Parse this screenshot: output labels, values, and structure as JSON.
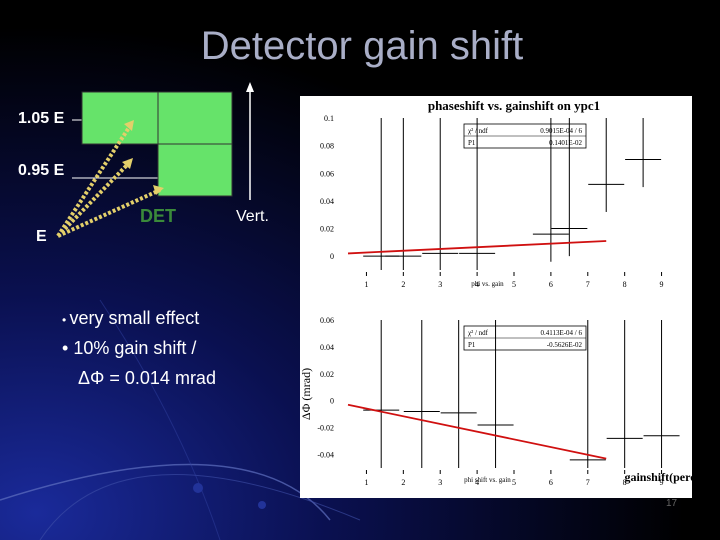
{
  "slide": {
    "title": "Detector gain shift",
    "energy_labels": [
      "1.05 E",
      "0.95 E",
      "E"
    ],
    "det_label": "DET",
    "vert_label": "Vert.",
    "bullets": [
      "very small effect",
      "10% gain shift /",
      "ΔΦ = 0.014 mrad"
    ],
    "slide_number": "17",
    "colors": {
      "background": "#000000",
      "title": "#a9aec7",
      "det_box": "#66e36a",
      "arrow": "#e3cf6a",
      "fit_line": "#d01010"
    }
  },
  "chart_data": [
    {
      "type": "scatter",
      "title": "phaseshift vs. gainshift on ypc1",
      "xlabel": "phi vs. gain",
      "ylabel": "",
      "xlim": [
        0.5,
        9.5
      ],
      "ylim": [
        -0.01,
        0.1
      ],
      "xticks": [
        "1",
        "2",
        "3",
        "4",
        "5",
        "6",
        "7",
        "8",
        "9"
      ],
      "yticks": [
        "0",
        "0.02",
        "0.04",
        "0.06",
        "0.08",
        "0.1"
      ],
      "stats": {
        "chi2_label": "χ² / ndf",
        "chi2_value": "0.9015E-04 / 6",
        "p1_label": "P1",
        "p1_value": "0.1401E-02"
      },
      "points": [
        {
          "x": 1.4,
          "y": 0.0,
          "err_hi": 0.12,
          "err_lo": 0.02
        },
        {
          "x": 2.0,
          "y": 0.0,
          "err_hi": 0.12,
          "err_lo": 0.02
        },
        {
          "x": 3.0,
          "y": 0.002,
          "err_hi": 0.12,
          "err_lo": 0.02
        },
        {
          "x": 4.0,
          "y": 0.002,
          "err_hi": 0.12,
          "err_lo": 0.02
        },
        {
          "x": 6.0,
          "y": 0.016,
          "err_hi": 0.12,
          "err_lo": 0.02
        },
        {
          "x": 6.5,
          "y": 0.02,
          "err_hi": 0.12,
          "err_lo": 0.02
        },
        {
          "x": 7.5,
          "y": 0.052,
          "err_hi": 0.12,
          "err_lo": 0.02
        },
        {
          "x": 8.5,
          "y": 0.07,
          "err_hi": 0.12,
          "err_lo": 0.02
        }
      ],
      "fit": {
        "x": [
          0.5,
          7.5
        ],
        "y": [
          0.002,
          0.011
        ]
      }
    },
    {
      "type": "scatter",
      "title": "",
      "xlabel": "phi shift vs. gain",
      "ylabel": "ΔΦ (mrad)",
      "xlabel2": "gainshift(percent)",
      "xlim": [
        0.5,
        9.5
      ],
      "ylim": [
        -0.05,
        0.06
      ],
      "xticks": [
        "1",
        "2",
        "3",
        "4",
        "5",
        "6",
        "7",
        "8",
        "9"
      ],
      "yticks": [
        "-0.04",
        "-0.02",
        "0",
        "0.02",
        "0.04",
        "0.06"
      ],
      "stats": {
        "chi2_label": "χ² / ndf",
        "chi2_value": "0.4113E-04 / 6",
        "p1_label": "P1",
        "p1_value": "-0.5626E-02"
      },
      "points": [
        {
          "x": 1.4,
          "y": -0.007,
          "err_hi": 0.12,
          "err_lo": 0.12
        },
        {
          "x": 2.5,
          "y": -0.008,
          "err_hi": 0.12,
          "err_lo": 0.12
        },
        {
          "x": 3.5,
          "y": -0.009,
          "err_hi": 0.12,
          "err_lo": 0.12
        },
        {
          "x": 4.5,
          "y": -0.018,
          "err_hi": 0.12,
          "err_lo": 0.12
        },
        {
          "x": 7.0,
          "y": -0.044,
          "err_hi": 0.12,
          "err_lo": 0.12
        },
        {
          "x": 8.0,
          "y": -0.028,
          "err_hi": 0.12,
          "err_lo": 0.12
        },
        {
          "x": 9.0,
          "y": -0.026,
          "err_hi": 0.12,
          "err_lo": 0.12
        }
      ],
      "fit": {
        "x": [
          0.5,
          7.5
        ],
        "y": [
          -0.003,
          -0.043
        ]
      }
    }
  ]
}
